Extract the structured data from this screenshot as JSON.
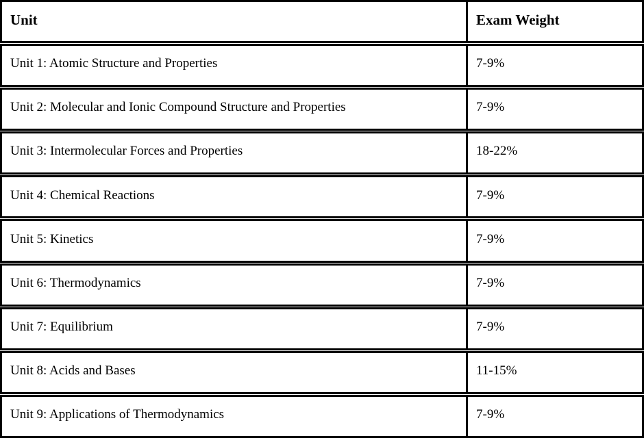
{
  "table": {
    "header": {
      "unit": "Unit",
      "weight": "Exam Weight"
    },
    "rows": [
      {
        "unit": "Unit 1: Atomic Structure and Properties",
        "weight": "7-9%"
      },
      {
        "unit": "Unit 2: Molecular and Ionic Compound Structure and Properties",
        "weight": "7-9%"
      },
      {
        "unit": "Unit 3: Intermolecular Forces and Properties",
        "weight": "18-22%"
      },
      {
        "unit": "Unit 4: Chemical Reactions",
        "weight": "7-9%"
      },
      {
        "unit": "Unit 5: Kinetics",
        "weight": "7-9%"
      },
      {
        "unit": "Unit 6: Thermodynamics",
        "weight": "7-9%"
      },
      {
        "unit": "Unit 7: Equilibrium",
        "weight": "7-9%"
      },
      {
        "unit": "Unit 8: Acids and Bases",
        "weight": "11-15%"
      },
      {
        "unit": "Unit 9: Applications of Thermodynamics",
        "weight": "7-9%"
      }
    ],
    "colors": {
      "border": "#000000",
      "background": "#ffffff",
      "text": "#000000"
    }
  }
}
